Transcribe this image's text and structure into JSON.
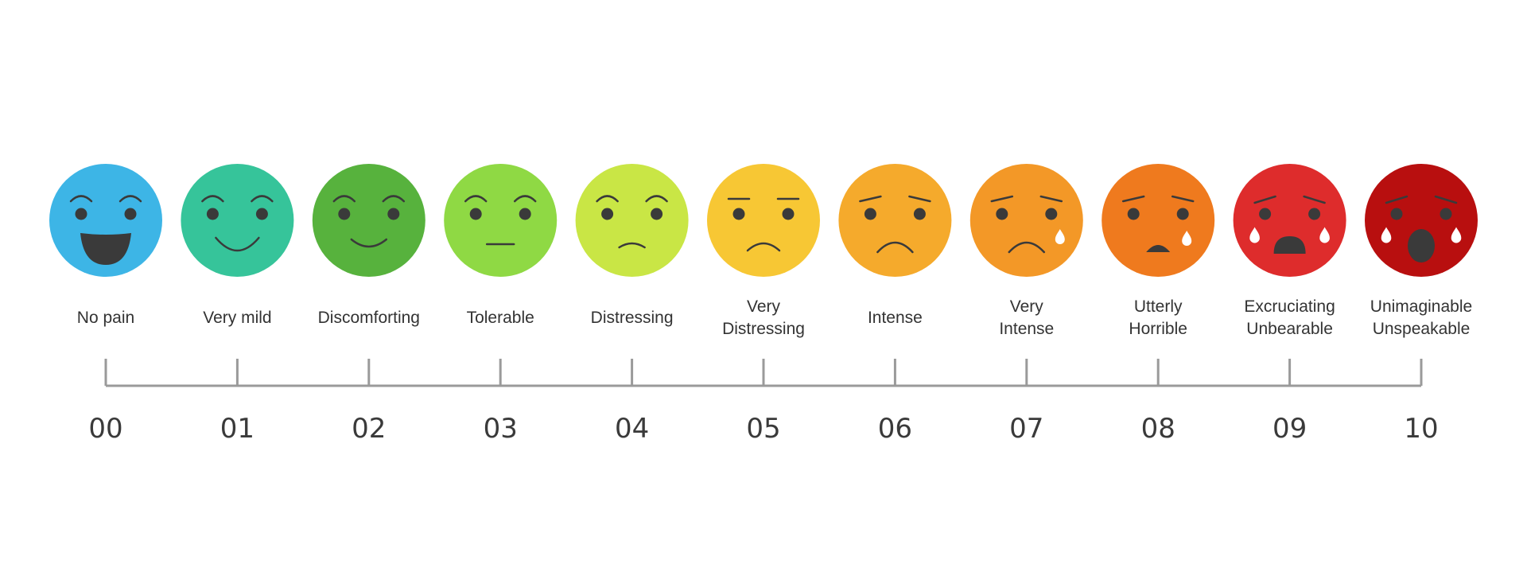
{
  "levels": [
    {
      "number": "00",
      "label_lines": [
        "No pain"
      ],
      "color": "#3DB5E6",
      "expression": "laughing"
    },
    {
      "number": "01",
      "label_lines": [
        "Very mild"
      ],
      "color": "#36C49A",
      "expression": "big-smile"
    },
    {
      "number": "02",
      "label_lines": [
        "Discomforting"
      ],
      "color": "#57B23D",
      "expression": "smile"
    },
    {
      "number": "03",
      "label_lines": [
        "Tolerable"
      ],
      "color": "#8FD944",
      "expression": "neutral"
    },
    {
      "number": "04",
      "label_lines": [
        "Distressing"
      ],
      "color": "#C9E645",
      "expression": "slight-frown"
    },
    {
      "number": "05",
      "label_lines": [
        "Very",
        "Distressing"
      ],
      "color": "#F7C734",
      "expression": "frown"
    },
    {
      "number": "06",
      "label_lines": [
        "Intense"
      ],
      "color": "#F5AA2C",
      "expression": "sad"
    },
    {
      "number": "07",
      "label_lines": [
        "Very",
        "Intense"
      ],
      "color": "#F39827",
      "expression": "sad-tear"
    },
    {
      "number": "08",
      "label_lines": [
        "Utterly",
        "Horrible"
      ],
      "color": "#EF7A1E",
      "expression": "distressed-tear"
    },
    {
      "number": "09",
      "label_lines": [
        "Excruciating",
        "Unbearable"
      ],
      "color": "#DE2C2C",
      "expression": "crying"
    },
    {
      "number": "10",
      "label_lines": [
        "Unimaginable",
        "Unspeakable"
      ],
      "color": "#B80F0F",
      "expression": "screaming-crying"
    }
  ],
  "colors": {
    "features": "#3a3a3a",
    "axis": "#9a9a9a",
    "text": "#333333",
    "background": "#ffffff"
  }
}
